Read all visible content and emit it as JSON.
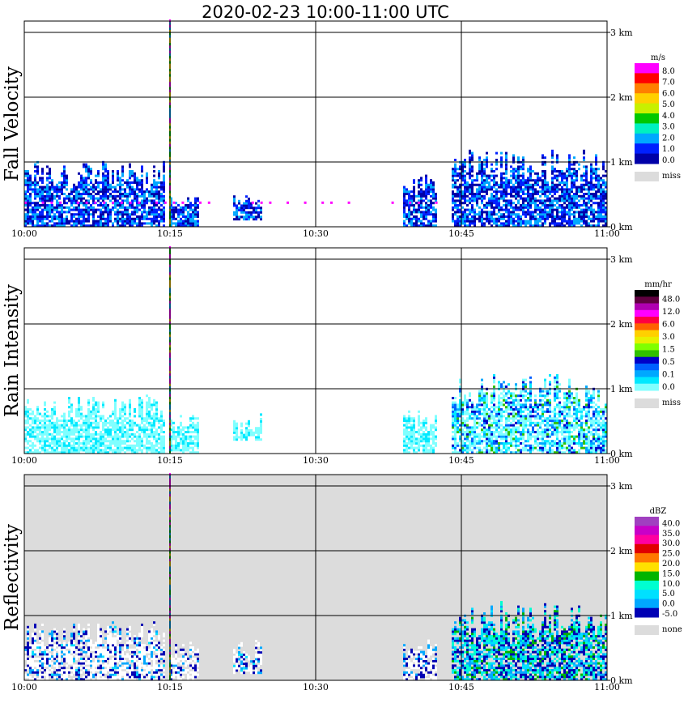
{
  "title": "2020-02-23  10:00-11:00 UTC",
  "x_ticks": [
    "10:00",
    "10:15",
    "10:30",
    "10:45",
    "11:00"
  ],
  "y_ticks": [
    "0 km",
    "1 km",
    "2 km",
    "3 km"
  ],
  "chart_data": [
    {
      "type": "heatmap",
      "title": "Fall Velocity",
      "ylabel": "Fall Velocity",
      "xlabel": "",
      "x_range": [
        "10:00",
        "11:00"
      ],
      "y_range_km": [
        0,
        3.2
      ],
      "unit": "m/s",
      "colorbar": {
        "labels": [
          "8.0",
          "7.0",
          "6.0",
          "5.0",
          "4.0",
          "3.0",
          "2.0",
          "1.0",
          "0.0"
        ],
        "colors": [
          "#ff00ff",
          "#ff0000",
          "#ff7f00",
          "#ffd000",
          "#c8f000",
          "#00c800",
          "#00f0c0",
          "#00a8ff",
          "#0020ff",
          "#0000a8"
        ],
        "missing_label": "miss",
        "missing_color": "#dcdcdc"
      },
      "background": "#ffffff",
      "echo_regions": [
        {
          "t": [
            0,
            14.5
          ],
          "z_km": [
            0,
            1.0
          ],
          "intensity": 0.5
        },
        {
          "t": [
            15,
            18
          ],
          "z_km": [
            0,
            0.5
          ],
          "intensity": 0.5
        },
        {
          "t": [
            21.5,
            24.5
          ],
          "z_km": [
            0.1,
            0.5
          ],
          "intensity": 0.6
        },
        {
          "t": [
            39,
            42.5
          ],
          "z_km": [
            0,
            0.8
          ],
          "intensity": 0.6
        },
        {
          "t": [
            44,
            60
          ],
          "z_km": [
            0,
            1.2
          ],
          "intensity": 0.8
        }
      ],
      "streak": {
        "t": 15,
        "z_km": [
          0,
          3.2
        ]
      }
    },
    {
      "type": "heatmap",
      "title": "Rain Intensity",
      "ylabel": "Rain Intensity",
      "xlabel": "",
      "x_range": [
        "10:00",
        "11:00"
      ],
      "y_range_km": [
        0,
        3.2
      ],
      "unit": "mm/hr",
      "colorbar": {
        "labels": [
          "48.0",
          "12.0",
          "6.0",
          "3.0",
          "1.5",
          "0.5",
          "0.1",
          "0.0"
        ],
        "colors": [
          "#000000",
          "#600040",
          "#b000b0",
          "#ff00ff",
          "#ff0040",
          "#ff6000",
          "#ffd000",
          "#e8f000",
          "#80ff00",
          "#30c000",
          "#0000c8",
          "#0060ff",
          "#00a8ff",
          "#00e8ff",
          "#80ffff"
        ],
        "missing_label": "miss",
        "missing_color": "#dcdcdc"
      },
      "background": "#ffffff",
      "echo_regions": [
        {
          "t": [
            0,
            14.5
          ],
          "z_km": [
            0,
            0.9
          ],
          "intensity": 0.2
        },
        {
          "t": [
            15,
            18
          ],
          "z_km": [
            0,
            0.6
          ],
          "intensity": 0.2
        },
        {
          "t": [
            21.5,
            24.5
          ],
          "z_km": [
            0.2,
            0.6
          ],
          "intensity": 0.2
        },
        {
          "t": [
            39,
            42.5
          ],
          "z_km": [
            0,
            0.7
          ],
          "intensity": 0.2
        },
        {
          "t": [
            44,
            60
          ],
          "z_km": [
            0,
            1.2
          ],
          "intensity": 0.6
        }
      ],
      "streak": {
        "t": 15,
        "z_km": [
          0,
          3.2
        ]
      }
    },
    {
      "type": "heatmap",
      "title": "Reflectivity",
      "ylabel": "Reflectivity",
      "xlabel": "",
      "x_range": [
        "10:00",
        "11:00"
      ],
      "y_range_km": [
        0,
        3.2
      ],
      "unit": "dBZ",
      "colorbar": {
        "labels": [
          "40.0",
          "35.0",
          "30.0",
          "25.0",
          "20.0",
          "15.0",
          "10.0",
          "5.0",
          "0.0",
          "-5.0"
        ],
        "colors": [
          "#a040c0",
          "#c800c8",
          "#ff00a0",
          "#e00000",
          "#ff7800",
          "#ffe000",
          "#00b400",
          "#00ffd0",
          "#00e0ff",
          "#00a8ff",
          "#0000b4"
        ],
        "missing_label": "none",
        "missing_color": "#dcdcdc"
      },
      "background": "#dcdcdc",
      "echo_regions": [
        {
          "t": [
            0,
            14.5
          ],
          "z_km": [
            0,
            0.9
          ],
          "intensity": 0.4
        },
        {
          "t": [
            15,
            18
          ],
          "z_km": [
            0,
            0.6
          ],
          "intensity": 0.3
        },
        {
          "t": [
            21.5,
            24.5
          ],
          "z_km": [
            0.1,
            0.6
          ],
          "intensity": 0.4
        },
        {
          "t": [
            39,
            42.5
          ],
          "z_km": [
            0,
            0.6
          ],
          "intensity": 0.3
        },
        {
          "t": [
            44,
            60
          ],
          "z_km": [
            0,
            1.2
          ],
          "intensity": 0.8
        }
      ],
      "streak": {
        "t": 15,
        "z_km": [
          0,
          3.2
        ]
      }
    }
  ]
}
